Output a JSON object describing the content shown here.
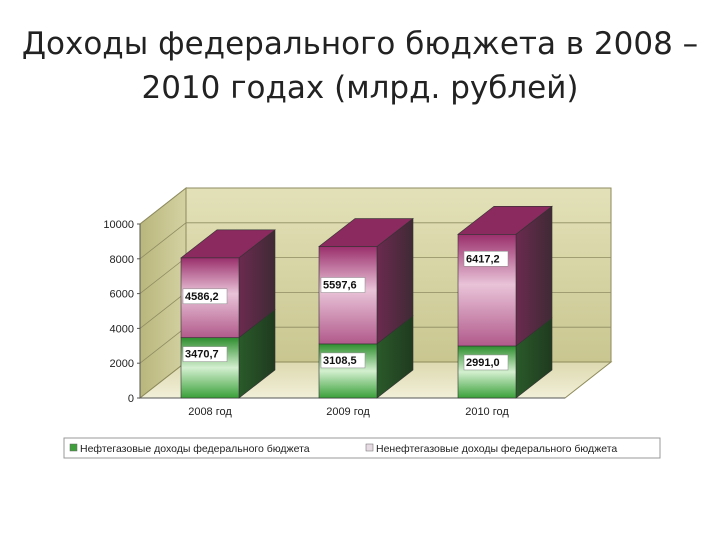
{
  "slide": {
    "title_line1": "Доходы федерального бюджета в 2008 –",
    "title_line2": "2010 годах (млрд. рублей)"
  },
  "colors": {
    "oil_gas": "#3f9f3a",
    "non_oil_gas": "#8e2a62",
    "wall": "#d9d6a8",
    "floor": "#e9e6c8"
  },
  "chart_data": {
    "type": "bar",
    "stacked": true,
    "three_d": true,
    "categories": [
      "2008 год",
      "2009 год",
      "2010 год"
    ],
    "series": [
      {
        "name": "Нефтегазовые доходы федерального бюджета",
        "values": [
          3470.7,
          3108.5,
          2991.0
        ],
        "labels": [
          "3470,7",
          "3108,5",
          "2991,0"
        ]
      },
      {
        "name": "Ненефтегазовые доходы федерального бюджета",
        "values": [
          4586.2,
          5597.6,
          6417.2
        ],
        "labels": [
          "4586,2",
          "5597,6",
          "6417,2"
        ]
      }
    ],
    "yticks": [
      "0",
      "2000",
      "4000",
      "6000",
      "8000",
      "10000"
    ],
    "ylim": [
      0,
      10000
    ],
    "grid": true,
    "legend_position": "bottom"
  }
}
